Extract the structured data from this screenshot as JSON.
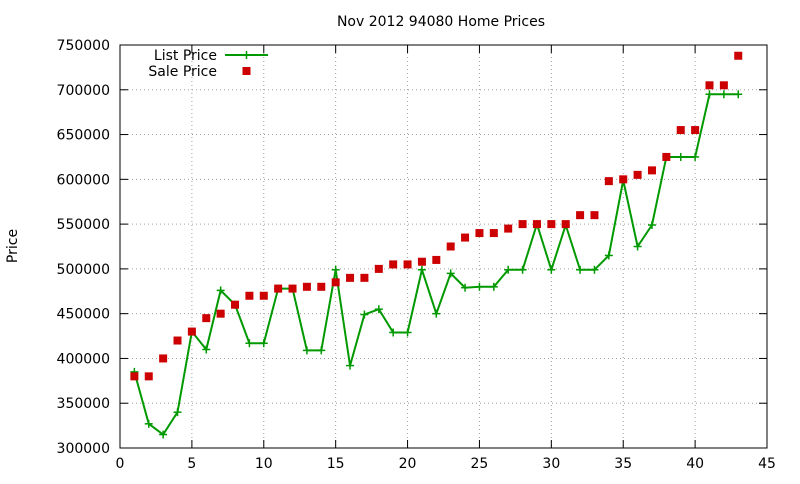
{
  "chart_data": {
    "type": "line",
    "title": "Nov 2012 94080 Home Prices",
    "xlabel": "",
    "ylabel": "Price",
    "xlim": [
      0,
      45
    ],
    "ylim": [
      300000,
      750000
    ],
    "xticks": [
      0,
      5,
      10,
      15,
      20,
      25,
      30,
      35,
      40,
      45
    ],
    "yticks": [
      300000,
      350000,
      400000,
      450000,
      500000,
      550000,
      600000,
      650000,
      700000,
      750000
    ],
    "grid": true,
    "legend_position": "top-left",
    "series": [
      {
        "name": "List Price",
        "style": "lines+points",
        "marker": "plus",
        "color": "#009900",
        "x": [
          1,
          2,
          3,
          4,
          5,
          6,
          7,
          8,
          9,
          10,
          11,
          12,
          13,
          14,
          15,
          16,
          17,
          18,
          19,
          20,
          21,
          22,
          23,
          24,
          25,
          26,
          27,
          28,
          29,
          30,
          31,
          32,
          33,
          34,
          35,
          36,
          37,
          38,
          39,
          40,
          41,
          42,
          43
        ],
        "y": [
          385000,
          327000,
          315000,
          340000,
          430000,
          410000,
          476000,
          460000,
          417000,
          417000,
          478000,
          478000,
          409000,
          409000,
          499000,
          392000,
          449000,
          455000,
          429000,
          429000,
          499000,
          450000,
          495000,
          479000,
          480000,
          480000,
          499000,
          499000,
          550000,
          499000,
          549000,
          499000,
          499000,
          515000,
          599000,
          525000,
          549000,
          625000,
          625000,
          625000,
          695000,
          695000,
          695000
        ]
      },
      {
        "name": "Sale Price",
        "style": "points",
        "marker": "square",
        "color": "#cc0000",
        "x": [
          1,
          2,
          3,
          4,
          5,
          6,
          7,
          8,
          9,
          10,
          11,
          12,
          13,
          14,
          15,
          16,
          17,
          18,
          19,
          20,
          21,
          22,
          23,
          24,
          25,
          26,
          27,
          28,
          29,
          30,
          31,
          32,
          33,
          34,
          35,
          36,
          37,
          38,
          39,
          40,
          41,
          42,
          43
        ],
        "y": [
          380000,
          380000,
          400000,
          420000,
          430000,
          445000,
          450000,
          460000,
          470000,
          470000,
          478000,
          478000,
          480000,
          480000,
          485000,
          490000,
          490000,
          500000,
          505000,
          505000,
          508000,
          510000,
          525000,
          535000,
          540000,
          540000,
          545000,
          550000,
          550000,
          550000,
          550000,
          560000,
          560000,
          598000,
          600000,
          605000,
          610000,
          625000,
          655000,
          655000,
          705000,
          705000,
          738000
        ]
      }
    ]
  }
}
